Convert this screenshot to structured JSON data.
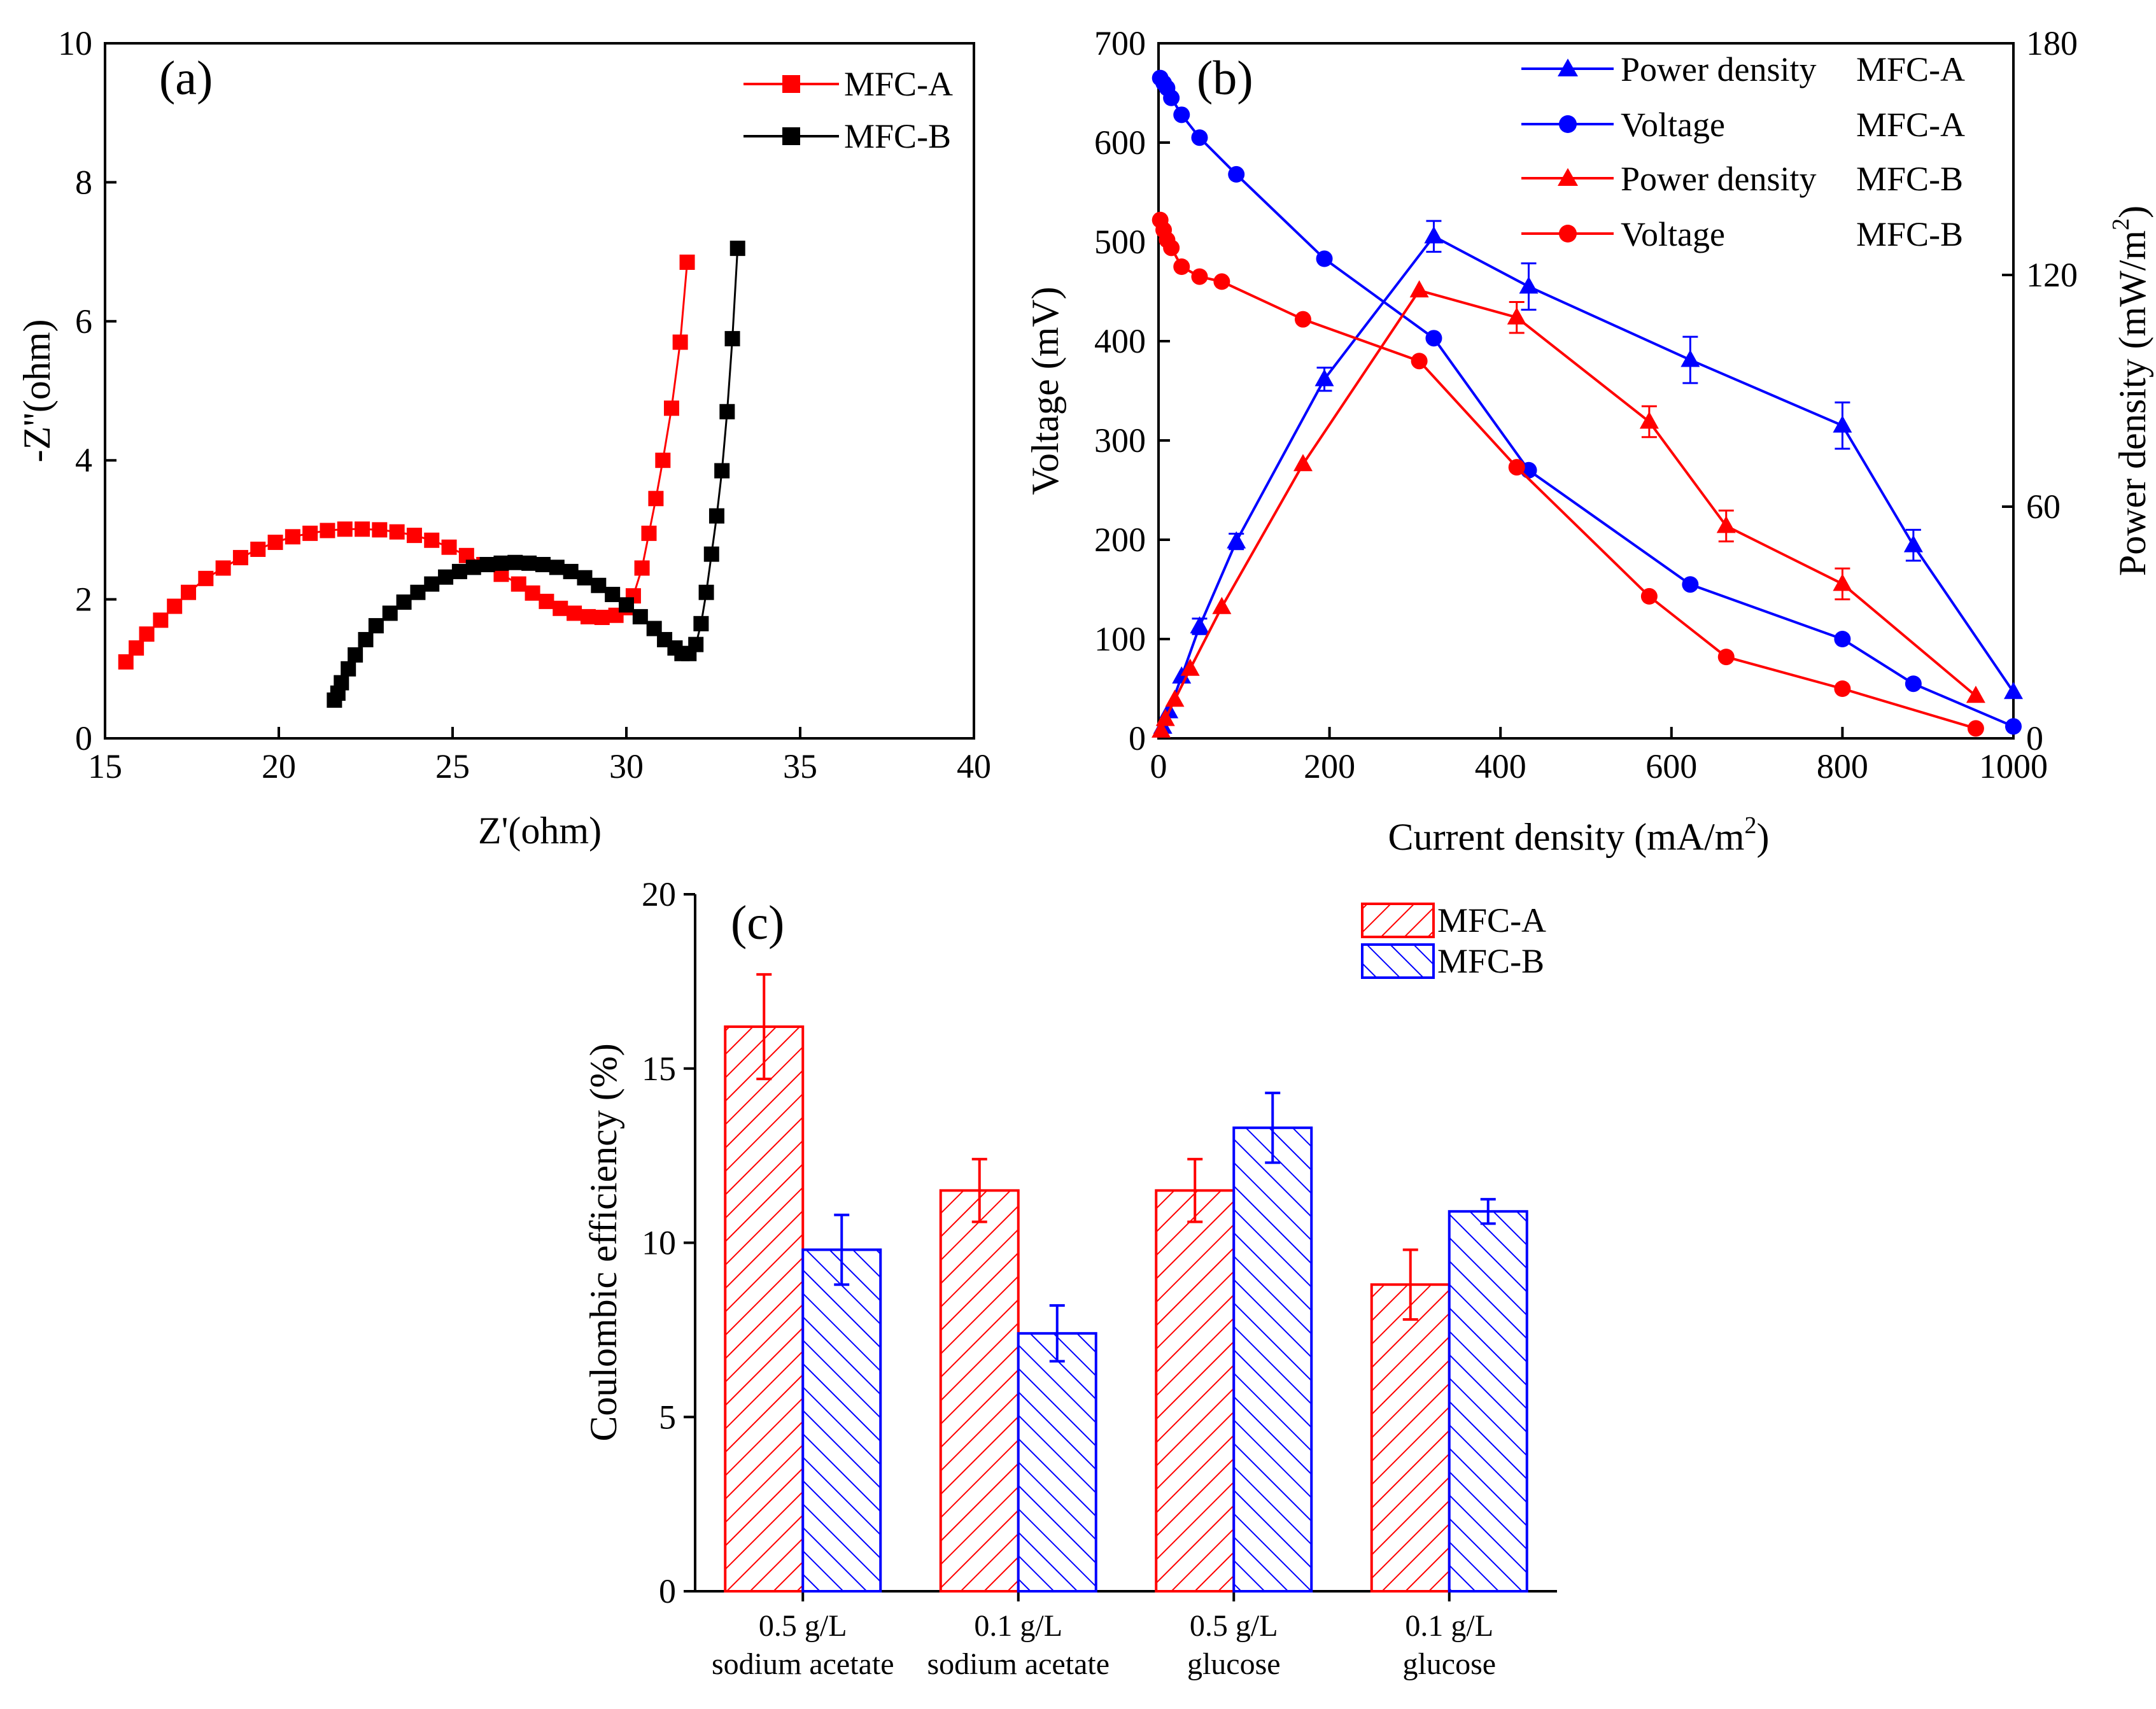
{
  "colors": {
    "mfc_a_eis": "#ff0000",
    "mfc_b_eis": "#000000",
    "blue": "#0000ff",
    "red": "#ff0000",
    "axis": "#000000"
  },
  "chart_data": [
    {
      "id": "a",
      "type": "line",
      "panel_label": "(a)",
      "title": "",
      "xlabel": "Z'(ohm)",
      "ylabel": "-Z''(ohm)",
      "xlim": [
        15,
        40
      ],
      "ylim": [
        0,
        10
      ],
      "xticks": [
        15,
        20,
        25,
        30,
        35,
        40
      ],
      "yticks": [
        0,
        2,
        4,
        6,
        8,
        10
      ],
      "marker": "square",
      "legend_position": "top-right",
      "series": [
        {
          "name": "MFC-A",
          "color": "#ff0000",
          "x": [
            15.6,
            15.9,
            16.2,
            16.6,
            17.0,
            17.4,
            17.9,
            18.4,
            18.9,
            19.4,
            19.9,
            20.4,
            20.9,
            21.4,
            21.9,
            22.4,
            22.9,
            23.4,
            23.9,
            24.4,
            24.9,
            25.4,
            25.9,
            26.4,
            26.9,
            27.3,
            27.7,
            28.1,
            28.5,
            28.9,
            29.3,
            29.7,
            30.0,
            30.2,
            30.45,
            30.65,
            30.85,
            31.05,
            31.3,
            31.55,
            31.75
          ],
          "y": [
            1.1,
            1.3,
            1.5,
            1.7,
            1.9,
            2.1,
            2.3,
            2.45,
            2.6,
            2.72,
            2.82,
            2.9,
            2.95,
            2.99,
            3.01,
            3.01,
            3.0,
            2.97,
            2.92,
            2.85,
            2.75,
            2.63,
            2.5,
            2.36,
            2.22,
            2.09,
            1.97,
            1.87,
            1.8,
            1.75,
            1.74,
            1.77,
            1.88,
            2.05,
            2.45,
            2.95,
            3.45,
            4.0,
            4.75,
            5.7,
            6.85
          ]
        },
        {
          "name": "MFC-B",
          "color": "#000000",
          "x": [
            21.6,
            21.7,
            21.8,
            22.0,
            22.2,
            22.5,
            22.8,
            23.2,
            23.6,
            24.0,
            24.4,
            24.8,
            25.2,
            25.6,
            26.0,
            26.4,
            26.8,
            27.2,
            27.6,
            28.0,
            28.4,
            28.8,
            29.2,
            29.6,
            30.0,
            30.4,
            30.8,
            31.1,
            31.4,
            31.6,
            31.8,
            32.0,
            32.15,
            32.3,
            32.45,
            32.6,
            32.75,
            32.9,
            33.05,
            33.2
          ],
          "y": [
            0.55,
            0.65,
            0.8,
            1.0,
            1.2,
            1.42,
            1.62,
            1.8,
            1.96,
            2.1,
            2.22,
            2.32,
            2.4,
            2.46,
            2.5,
            2.52,
            2.53,
            2.52,
            2.5,
            2.46,
            2.4,
            2.31,
            2.2,
            2.07,
            1.92,
            1.75,
            1.58,
            1.42,
            1.3,
            1.22,
            1.22,
            1.35,
            1.65,
            2.1,
            2.65,
            3.2,
            3.85,
            4.7,
            5.75,
            7.05
          ]
        }
      ]
    },
    {
      "id": "b",
      "type": "line",
      "panel_label": "(b)",
      "xlabel": "Current density (mA/m",
      "xlabel_sup": "2",
      "xlabel_end": ")",
      "ylabel": "Voltage (mV)",
      "y2label": "Power density (mW/m",
      "y2label_sup": "2",
      "y2label_end": ")",
      "xlim": [
        0,
        1000
      ],
      "ylim": [
        0,
        700
      ],
      "y2lim": [
        0,
        180
      ],
      "xticks": [
        0,
        200,
        400,
        600,
        800,
        1000
      ],
      "yticks": [
        0,
        100,
        200,
        300,
        400,
        500,
        600,
        700
      ],
      "y2ticks": [
        0,
        60,
        120,
        180
      ],
      "legend_position": "top-right",
      "series": [
        {
          "name": "Power density MFC-A",
          "legend_left": "Power density",
          "legend_right": "MFC-A",
          "axis": "right",
          "marker": "triangle",
          "color": "#0000ff",
          "x": [
            5,
            12,
            27,
            48,
            91,
            194,
            322,
            433,
            622,
            800,
            883,
            1000
          ],
          "y": [
            3,
            7,
            16,
            29,
            51,
            93,
            130,
            117,
            98,
            81,
            50,
            12
          ],
          "err": [
            0,
            0,
            0,
            2,
            2,
            3,
            4,
            6,
            6,
            6,
            4,
            0
          ]
        },
        {
          "name": "Voltage MFC-A",
          "legend_left": "Voltage",
          "legend_right": "MFC-A",
          "axis": "left",
          "marker": "circle",
          "color": "#0000ff",
          "x": [
            2,
            6,
            10,
            15,
            27,
            48,
            91,
            194,
            322,
            433,
            622,
            800,
            883,
            1000
          ],
          "y": [
            665,
            660,
            655,
            645,
            628,
            605,
            568,
            483,
            403,
            270,
            155,
            100,
            55,
            12
          ]
        },
        {
          "name": "Power density MFC-B",
          "legend_left": "Power density",
          "legend_right": "MFC-B",
          "axis": "right",
          "marker": "triangle",
          "color": "#ff0000",
          "x": [
            3,
            8,
            19,
            37,
            74,
            169,
            305,
            419,
            574,
            664,
            800,
            956
          ],
          "y": [
            2,
            5,
            10,
            18,
            34,
            71,
            116,
            109,
            82,
            55,
            40,
            11
          ],
          "err": [
            0,
            0,
            0,
            0,
            0,
            0,
            0,
            4,
            4,
            4,
            4,
            0
          ]
        },
        {
          "name": "Voltage MFC-B",
          "legend_left": "Voltage",
          "legend_right": "MFC-B",
          "axis": "left",
          "marker": "circle",
          "color": "#ff0000",
          "x": [
            2,
            6,
            10,
            15,
            27,
            48,
            74,
            169,
            305,
            419,
            574,
            664,
            800,
            956
          ],
          "y": [
            522,
            512,
            502,
            494,
            475,
            465,
            460,
            422,
            380,
            273,
            143,
            82,
            50,
            10
          ]
        }
      ]
    },
    {
      "id": "c",
      "type": "bar",
      "panel_label": "(c)",
      "ylabel": "Coulombic efficiency (%)",
      "ylim": [
        0,
        20
      ],
      "yticks": [
        0,
        5,
        10,
        15,
        20
      ],
      "categories": [
        [
          "0.5 g/L",
          "sodium acetate"
        ],
        [
          "0.1 g/L",
          "sodium acetate"
        ],
        [
          "0.5 g/L",
          "glucose"
        ],
        [
          "0.1 g/L",
          "glucose"
        ]
      ],
      "legend_position": "top-right",
      "series": [
        {
          "name": "MFC-A",
          "color": "#ff0000",
          "values": [
            16.2,
            11.5,
            11.5,
            8.8
          ],
          "err": [
            1.5,
            0.9,
            0.9,
            1.0
          ]
        },
        {
          "name": "MFC-B",
          "color": "#0000ff",
          "values": [
            9.8,
            7.4,
            13.3,
            10.9
          ],
          "err": [
            1.0,
            0.8,
            1.0,
            0.35
          ]
        }
      ]
    }
  ]
}
